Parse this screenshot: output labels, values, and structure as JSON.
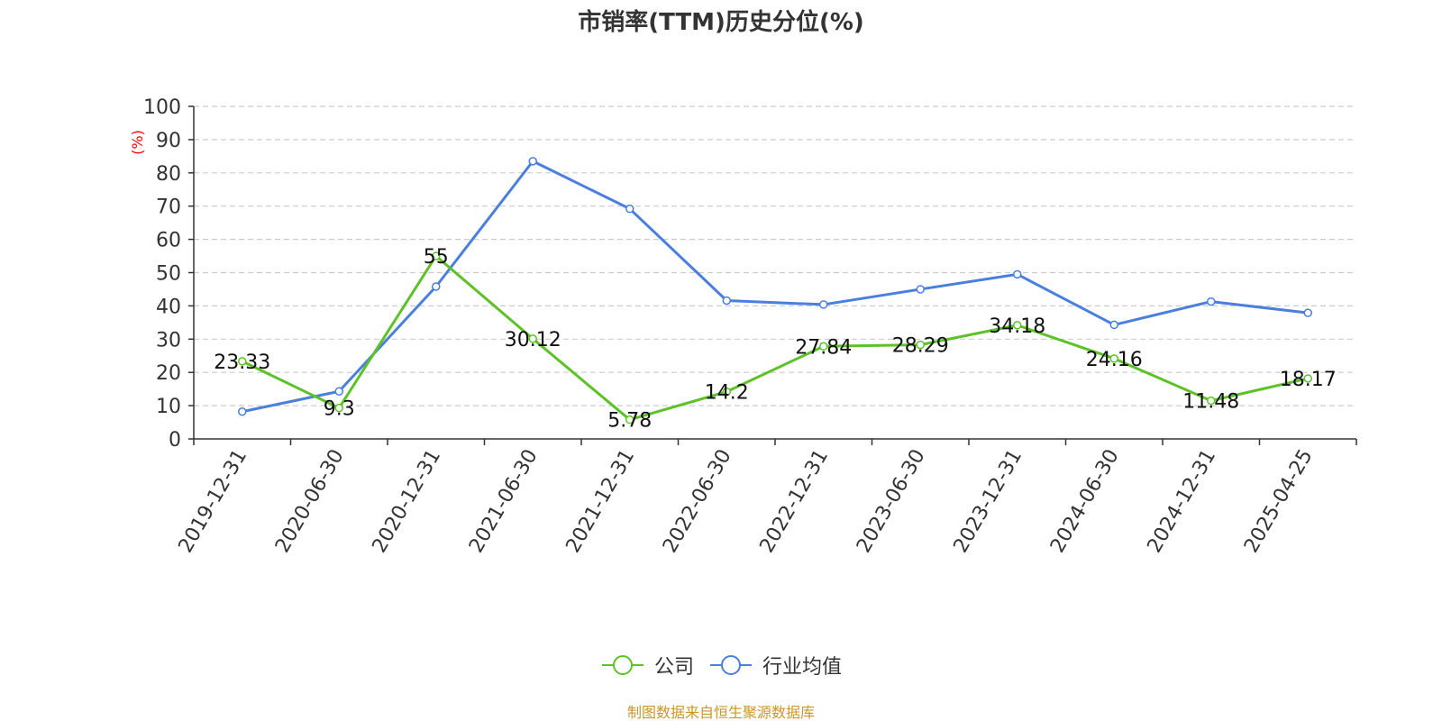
{
  "title": "市销率(TTM)历史分位(%)",
  "source_note": "制图数据来自恒生聚源数据库",
  "chart_data": {
    "type": "line",
    "title": "市销率(TTM)历史分位(%)",
    "ylabel": "(%)",
    "xlabel": "",
    "ylim": [
      0,
      100
    ],
    "yticks": [
      0,
      10,
      20,
      30,
      40,
      50,
      60,
      70,
      80,
      90,
      100
    ],
    "grid": true,
    "legend_position": "bottom",
    "categories": [
      "2019-12-31",
      "2020-06-30",
      "2020-12-31",
      "2021-06-30",
      "2021-12-31",
      "2022-06-30",
      "2022-12-31",
      "2023-06-30",
      "2023-12-31",
      "2024-06-30",
      "2024-12-31",
      "2025-04-25"
    ],
    "series": [
      {
        "name": "公司",
        "color": "#5cc227",
        "show_labels": true,
        "values": [
          23.33,
          9.3,
          55,
          30.12,
          5.78,
          14.2,
          27.84,
          28.29,
          34.18,
          24.16,
          11.48,
          18.17
        ],
        "labels": [
          "23.33",
          "9.3",
          "55",
          "30.12",
          "5.78",
          "14.2",
          "27.84",
          "28.29",
          "34.18",
          "24.16",
          "11.48",
          "18.17"
        ]
      },
      {
        "name": "行业均值",
        "color": "#4a7fde",
        "show_labels": false,
        "values": [
          8.2,
          14.3,
          45.8,
          83.5,
          69.2,
          41.6,
          40.4,
          45.0,
          49.5,
          34.3,
          41.3,
          37.9
        ]
      }
    ]
  }
}
